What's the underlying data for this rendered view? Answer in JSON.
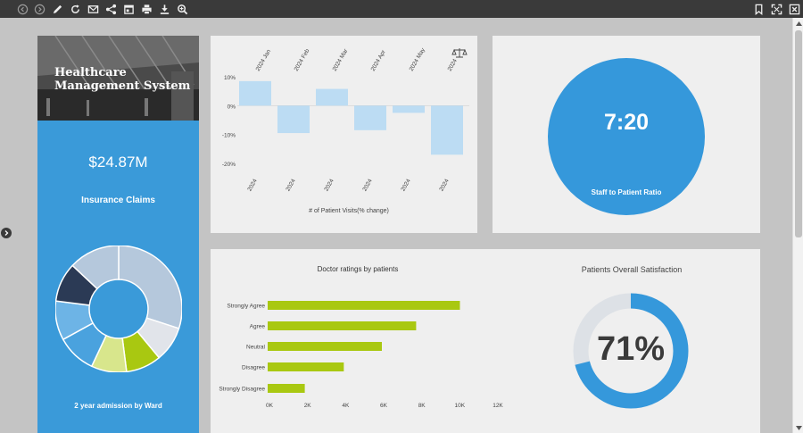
{
  "toolbar": {
    "left_icons": [
      "back-icon",
      "forward-icon",
      "pencil-icon",
      "refresh-icon",
      "email-icon",
      "share-icon",
      "calendar-icon",
      "print-icon",
      "download-icon",
      "zoom-icon"
    ],
    "right_icons": [
      "bookmark-icon",
      "fullscreen-icon",
      "close-icon"
    ]
  },
  "hero": {
    "title_line1": "Healthcare",
    "title_line2": "Management System"
  },
  "claims": {
    "amount": "$24.87M",
    "label": "Insurance Claims",
    "ward_label": "2 year admission by Ward",
    "chart_data": {
      "type": "pie",
      "slices": [
        {
          "value": 30,
          "color": "#b5c8dc"
        },
        {
          "value": 9,
          "color": "#e1e4ea"
        },
        {
          "value": 9,
          "color": "#a9c811"
        },
        {
          "value": 9,
          "color": "#d8e68c"
        },
        {
          "value": 10,
          "color": "#4aa2de"
        },
        {
          "value": 10,
          "color": "#6db4e6"
        },
        {
          "value": 10,
          "color": "#2b3a55"
        },
        {
          "value": 13,
          "color": "#b5c8dc"
        }
      ]
    }
  },
  "visits": {
    "xlabel": "# of Patient Visits(% change)",
    "chart_data": {
      "type": "bar",
      "categories": [
        "2024 Jan",
        "2024 Feb",
        "2024 Mar",
        "2024 Apr",
        "2024 May",
        "2024"
      ],
      "bottom_labels": [
        "2024",
        "2024",
        "2024",
        "2024",
        "2024",
        "2024"
      ],
      "values": [
        8.5,
        -9.5,
        5.8,
        -8.5,
        -2.5,
        -17
      ],
      "ylim": [
        -20,
        10
      ],
      "yticks": [
        "10%",
        "0%",
        "-10%",
        "-20%"
      ],
      "color": "#bcdcf3"
    }
  },
  "ratio": {
    "value": "7:20",
    "label": "Staff to Patient Ratio"
  },
  "ratings": {
    "title": "Doctor ratings by patients",
    "chart_data": {
      "type": "bar",
      "categories": [
        "Strongly Agree",
        "Agree",
        "Neutral",
        "Disagree",
        "Strongly Disagree"
      ],
      "values": [
        10100,
        7800,
        6000,
        4000,
        1950
      ],
      "xticks": [
        "0K",
        "2K",
        "4K",
        "6K",
        "8K",
        "10K",
        "12K"
      ],
      "xlim": [
        0,
        12000
      ],
      "color": "#a9c811"
    }
  },
  "satisfaction": {
    "title": "Patients Overall Satisfaction",
    "value": "71%",
    "percent": 71,
    "fill_color": "#3598db",
    "track_color": "#dde1e6"
  }
}
